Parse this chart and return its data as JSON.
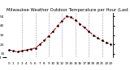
{
  "title": "Milwaukee Weather Outdoor Temperature per Hour (Last 24 Hours)",
  "hours": [
    0,
    1,
    2,
    3,
    4,
    5,
    6,
    7,
    8,
    9,
    10,
    11,
    12,
    13,
    14,
    15,
    16,
    17,
    18,
    19,
    20,
    21,
    22,
    23
  ],
  "temps": [
    18,
    17,
    16,
    17,
    18,
    19,
    20,
    24,
    28,
    33,
    38,
    44,
    49,
    54,
    53,
    50,
    46,
    42,
    38,
    34,
    31,
    28,
    26,
    24
  ],
  "line_color": "#cc0000",
  "marker_color": "#000000",
  "background_color": "#ffffff",
  "grid_color": "#999999",
  "title_color": "#000000",
  "ylim": [
    10,
    58
  ],
  "yticks_right": [
    14,
    24,
    34,
    44,
    54
  ],
  "ytick_left_val": 4,
  "grid_hours": [
    3,
    6,
    9,
    12,
    15,
    18,
    21
  ],
  "title_fontsize": 3.8,
  "tick_fontsize": 3.0,
  "line_width": 0.8,
  "marker_size": 1.8,
  "figsize": [
    1.6,
    0.87
  ],
  "dpi": 100
}
